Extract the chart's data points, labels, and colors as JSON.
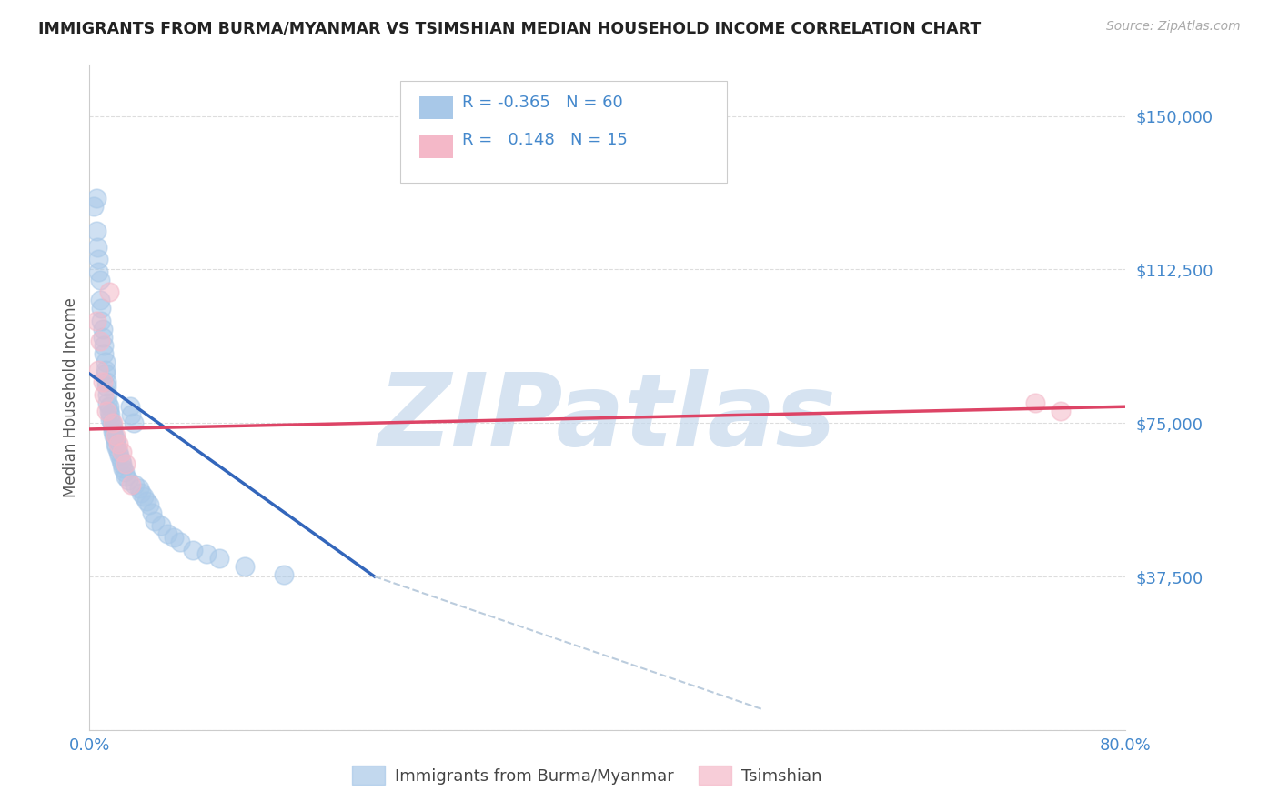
{
  "title": "IMMIGRANTS FROM BURMA/MYANMAR VS TSIMSHIAN MEDIAN HOUSEHOLD INCOME CORRELATION CHART",
  "source": "Source: ZipAtlas.com",
  "ylabel": "Median Household Income",
  "blue_R": -0.365,
  "blue_N": 60,
  "pink_R": 0.148,
  "pink_N": 15,
  "blue_color": "#a8c8e8",
  "pink_color": "#f4b8c8",
  "blue_line_color": "#3366bb",
  "pink_line_color": "#dd4466",
  "dashed_line_color": "#bbccdd",
  "background_color": "#ffffff",
  "grid_color": "#dddddd",
  "watermark_color": "#c5d8ec",
  "watermark_text": "ZIPatlas",
  "xlim": [
    0.0,
    0.8
  ],
  "ylim": [
    0,
    162500
  ],
  "ytick_positions": [
    0,
    37500,
    75000,
    112500,
    150000
  ],
  "ytick_labels": [
    "",
    "$37,500",
    "$75,000",
    "$112,500",
    "$150,000"
  ],
  "xtick_positions": [
    0.0,
    0.1,
    0.2,
    0.3,
    0.4,
    0.5,
    0.6,
    0.7,
    0.8
  ],
  "legend_labels": [
    "Immigrants from Burma/Myanmar",
    "Tsimshian"
  ],
  "title_color": "#222222",
  "axis_label_color": "#555555",
  "tick_label_color": "#4488cc",
  "blue_scatter_x": [
    0.003,
    0.005,
    0.005,
    0.006,
    0.007,
    0.007,
    0.008,
    0.008,
    0.009,
    0.009,
    0.01,
    0.01,
    0.011,
    0.011,
    0.012,
    0.012,
    0.012,
    0.013,
    0.013,
    0.014,
    0.014,
    0.015,
    0.015,
    0.016,
    0.016,
    0.017,
    0.018,
    0.018,
    0.019,
    0.02,
    0.02,
    0.021,
    0.022,
    0.023,
    0.024,
    0.025,
    0.026,
    0.027,
    0.028,
    0.03,
    0.031,
    0.032,
    0.034,
    0.035,
    0.038,
    0.04,
    0.042,
    0.044,
    0.046,
    0.048,
    0.05,
    0.055,
    0.06,
    0.065,
    0.07,
    0.08,
    0.09,
    0.1,
    0.12,
    0.15
  ],
  "blue_scatter_y": [
    128000,
    122000,
    130000,
    118000,
    115000,
    112000,
    110000,
    105000,
    103000,
    100000,
    98000,
    96000,
    94000,
    92000,
    90000,
    88000,
    87000,
    85000,
    84000,
    82000,
    80000,
    79000,
    78000,
    77000,
    76000,
    75000,
    74000,
    73000,
    72000,
    71000,
    70000,
    69000,
    68000,
    67000,
    66000,
    65000,
    64000,
    63000,
    62000,
    61000,
    79000,
    77000,
    75000,
    60000,
    59000,
    58000,
    57000,
    56000,
    55000,
    53000,
    51000,
    50000,
    48000,
    47000,
    46000,
    44000,
    43000,
    42000,
    40000,
    38000
  ],
  "pink_scatter_x": [
    0.005,
    0.007,
    0.008,
    0.01,
    0.011,
    0.013,
    0.015,
    0.018,
    0.02,
    0.022,
    0.025,
    0.028,
    0.032,
    0.73,
    0.75
  ],
  "pink_scatter_y": [
    100000,
    88000,
    95000,
    85000,
    82000,
    78000,
    107000,
    75000,
    72000,
    70000,
    68000,
    65000,
    60000,
    80000,
    78000
  ],
  "blue_line_x": [
    0.0,
    0.22
  ],
  "blue_line_y": [
    87000,
    37500
  ],
  "dash_line_x": [
    0.22,
    0.52
  ],
  "dash_line_y": [
    37500,
    5000
  ],
  "pink_line_x": [
    0.0,
    0.8
  ],
  "pink_line_y": [
    73500,
    79000
  ]
}
